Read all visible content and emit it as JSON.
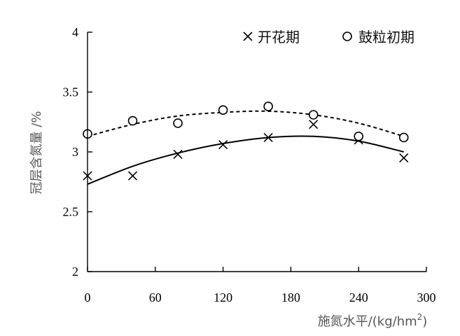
{
  "chart_data": {
    "type": "scatter",
    "xlabel": "施氮水平/(kg/hm2)",
    "xlabel_main": "施氮水平/(kg/hm",
    "xlabel_sup": "2",
    "xlabel_end": ")",
    "ylabel": "冠层含氮量 /%",
    "xlim": [
      0,
      300
    ],
    "ylim": [
      2,
      4
    ],
    "xticks": [
      "0",
      "60",
      "120",
      "180",
      "240",
      "300"
    ],
    "yticks": [
      "2",
      "2.5",
      "3",
      "3.5",
      "4"
    ],
    "grid": false,
    "legend_position": "top-right",
    "series": [
      {
        "name": "开花期",
        "marker": "x",
        "line_style": "solid",
        "color": "#000000",
        "x": [
          0,
          40,
          80,
          120,
          160,
          200,
          240,
          280
        ],
        "y": [
          2.8,
          2.8,
          2.98,
          3.06,
          3.12,
          3.23,
          3.1,
          2.95
        ],
        "trend": [
          2.73,
          2.88,
          2.99,
          3.07,
          3.12,
          3.13,
          3.09,
          3.0
        ]
      },
      {
        "name": "鼓粒初期",
        "marker": "o",
        "line_style": "dashed",
        "color": "#000000",
        "x": [
          0,
          40,
          80,
          120,
          160,
          200,
          240,
          280
        ],
        "y": [
          3.15,
          3.26,
          3.24,
          3.35,
          3.38,
          3.31,
          3.13,
          3.12
        ],
        "trend": [
          3.13,
          3.23,
          3.3,
          3.33,
          3.34,
          3.31,
          3.24,
          3.13
        ]
      }
    ]
  }
}
